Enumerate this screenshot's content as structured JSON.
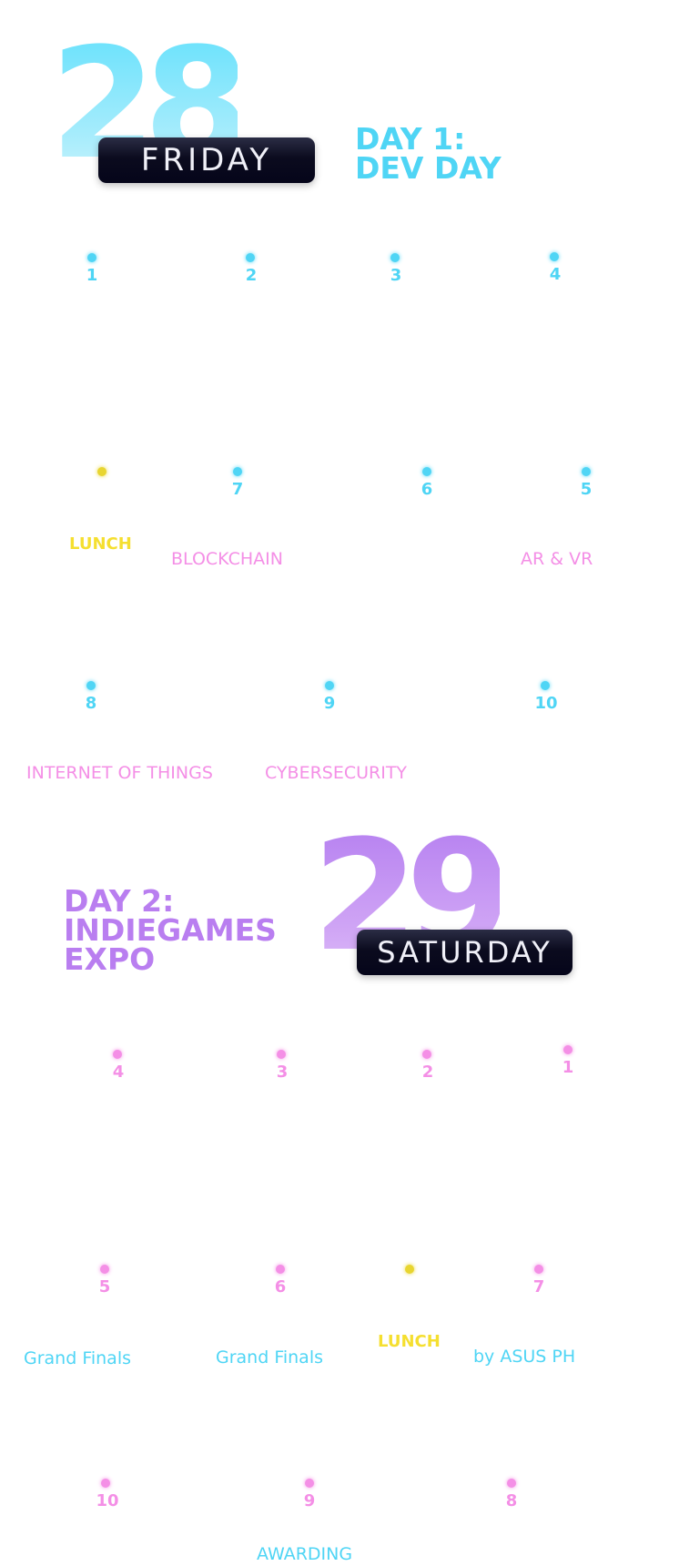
{
  "colors": {
    "day1_accent": "#4fd5f5",
    "day2_accent": "#b97ef0",
    "pink": "#f48fe6",
    "lunch_yellow": "#f5df30",
    "pill_bg": "#0b0b1e"
  },
  "day1": {
    "date_number": "28",
    "weekday": "FRIDAY",
    "title_line1": "DAY 1:",
    "title_line2": "DEV DAY",
    "nodes": [
      "1",
      "2",
      "3",
      "4",
      "7",
      "6",
      "5",
      "8",
      "9",
      "10"
    ],
    "lunch_label": "LUNCH",
    "topics": [
      "BLOCKCHAIN",
      "AR & VR",
      "INTERNET OF THINGS",
      "CYBERSECURITY"
    ]
  },
  "day2": {
    "date_number": "29",
    "weekday": "SATURDAY",
    "title_line1": "DAY 2:",
    "title_line2": "INDIEGAMES",
    "title_line3": "EXPO",
    "nodes": [
      "4",
      "3",
      "2",
      "1",
      "5",
      "6",
      "7",
      "10",
      "9",
      "8"
    ],
    "lunch_label": "LUNCH",
    "topics": [
      "Grand Finals",
      "Grand Finals",
      "by ASUS PH",
      "AWARDING"
    ]
  }
}
